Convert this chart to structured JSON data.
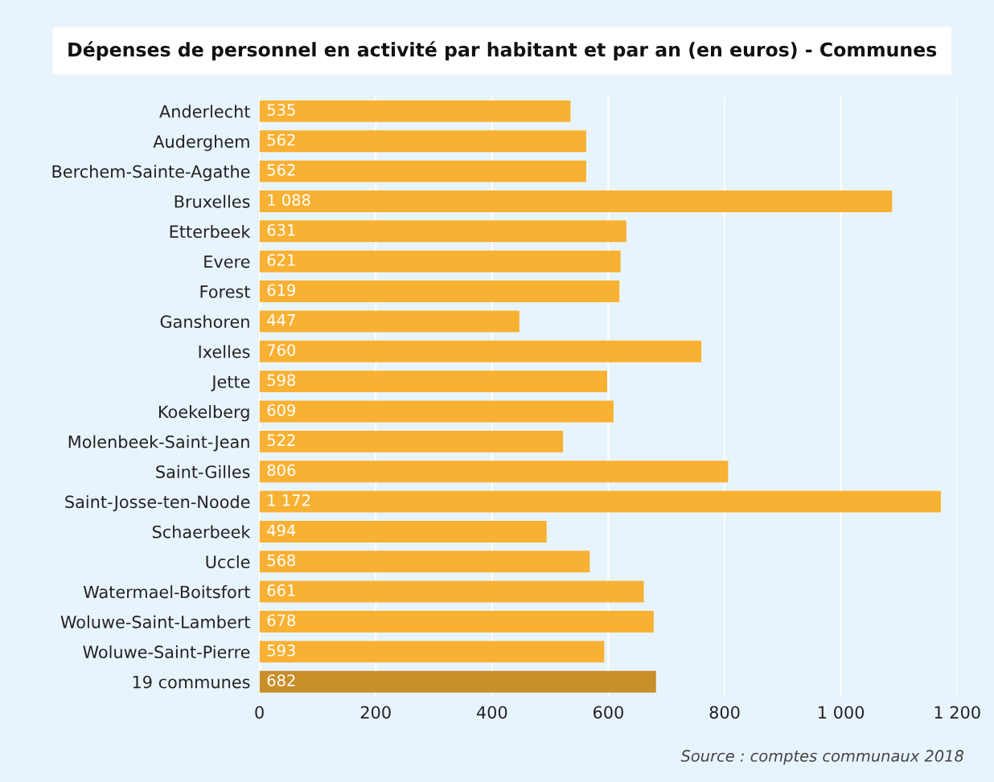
{
  "chart_data": {
    "type": "bar",
    "orientation": "horizontal",
    "title": "Dépenses de personnel en activité par habitant et par an (en euros) - Communes",
    "categories": [
      "Anderlecht",
      "Auderghem",
      "Berchem-Sainte-Agathe",
      "Bruxelles",
      "Etterbeek",
      "Evere",
      "Forest",
      "Ganshoren",
      "Ixelles",
      "Jette",
      "Koekelberg",
      "Molenbeek-Saint-Jean",
      "Saint-Gilles",
      "Saint-Josse-ten-Noode",
      "Schaerbeek",
      "Uccle",
      "Watermael-Boitsfort",
      "Woluwe-Saint-Lambert",
      "Woluwe-Saint-Pierre",
      "19 communes"
    ],
    "values": [
      535,
      562,
      562,
      1088,
      631,
      621,
      619,
      447,
      760,
      598,
      609,
      522,
      806,
      1172,
      494,
      568,
      661,
      678,
      593,
      682
    ],
    "value_labels": [
      "535",
      "562",
      "562",
      "1 088",
      "631",
      "621",
      "619",
      "447",
      "760",
      "598",
      "609",
      "522",
      "806",
      "1 172",
      "494",
      "568",
      "661",
      "678",
      "593",
      "682"
    ],
    "colors": [
      "#f8b133",
      "#f8b133",
      "#f8b133",
      "#f8b133",
      "#f8b133",
      "#f8b133",
      "#f8b133",
      "#f8b133",
      "#f8b133",
      "#f8b133",
      "#f8b133",
      "#f8b133",
      "#f8b133",
      "#f8b133",
      "#f8b133",
      "#f8b133",
      "#f8b133",
      "#f8b133",
      "#f8b133",
      "#c98f2b"
    ],
    "xlim": [
      0,
      1200
    ],
    "xticks": [
      0,
      200,
      400,
      600,
      800,
      {
        "value": 1000,
        "label": "1 000"
      },
      {
        "value": 1200,
        "label": "1 200"
      }
    ],
    "grid": "x",
    "legend": false,
    "annotations": [
      "Source : comptes communaux 2018"
    ]
  }
}
